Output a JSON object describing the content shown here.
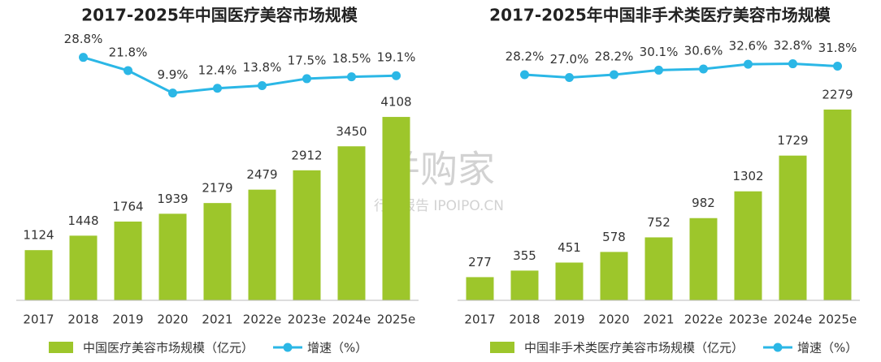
{
  "chart_data": [
    {
      "type": "bar",
      "title": "2017-2025年中国医疗美容市场规模",
      "categories": [
        "2017",
        "2018",
        "2019",
        "2020",
        "2021",
        "2022e",
        "2023e",
        "2024e",
        "2025e"
      ],
      "series": [
        {
          "name": "中国医疗美容市场规模（亿元）",
          "color": "#9dc62b",
          "values": [
            1124,
            1448,
            1764,
            1939,
            2179,
            2479,
            2912,
            3450,
            4108
          ]
        },
        {
          "name": "增速（%）",
          "color": "#2bb7e6",
          "type": "line",
          "axis": "y2",
          "values": [
            null,
            28.8,
            21.8,
            9.9,
            12.4,
            13.8,
            17.5,
            18.5,
            19.1
          ],
          "value_labels": [
            null,
            "28.8%",
            "21.8%",
            "9.9%",
            "12.4%",
            "13.8%",
            "17.5%",
            "18.5%",
            "19.1%"
          ]
        }
      ],
      "ylim": [
        0,
        6000
      ],
      "y2lim": [
        -100,
        42
      ]
    },
    {
      "type": "bar",
      "title": "2017-2025年中国非手术类医疗美容市场规模",
      "categories": [
        "2017",
        "2018",
        "2019",
        "2020",
        "2021",
        "2022e",
        "2023e",
        "2024e",
        "2025e"
      ],
      "series": [
        {
          "name": "中国非手术类医疗美容市场规模（亿元）",
          "color": "#9dc62b",
          "values": [
            277,
            355,
            451,
            578,
            752,
            982,
            1302,
            1729,
            2279
          ]
        },
        {
          "name": "增速（%）",
          "color": "#2bb7e6",
          "type": "line",
          "axis": "y2",
          "values": [
            null,
            28.2,
            27.0,
            28.2,
            30.1,
            30.6,
            32.6,
            32.8,
            31.8
          ],
          "value_labels": [
            null,
            "28.2%",
            "27.0%",
            "28.2%",
            "30.1%",
            "30.6%",
            "32.6%",
            "32.8%",
            "31.8%"
          ]
        }
      ],
      "ylim": [
        0,
        3200
      ],
      "y2lim": [
        -67,
        46
      ]
    }
  ],
  "watermark": {
    "main": "并购家",
    "sub": "行业报告 IPOIPO.CN"
  }
}
